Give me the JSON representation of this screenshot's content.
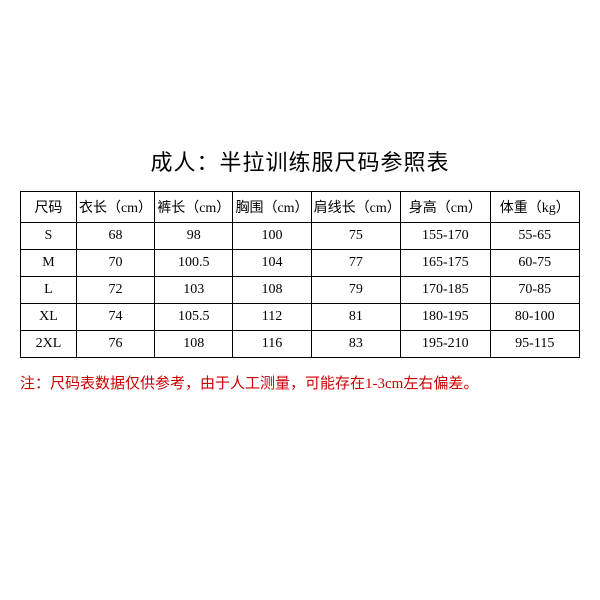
{
  "title": "成人：半拉训练服尺码参照表",
  "note": "注：尺码表数据仅供参考，由于人工测量，可能存在1-3cm左右偏差。",
  "table": {
    "type": "table",
    "border_color": "#000000",
    "background_color": "#ffffff",
    "text_color": "#000000",
    "note_color": "#cc0000",
    "title_fontsize": 22,
    "cell_fontsize": 14,
    "note_fontsize": 15,
    "col_widths_pct": [
      10,
      14,
      14,
      14,
      16,
      16,
      16
    ],
    "columns": [
      "尺码",
      "衣长（cm）",
      "裤长（cm）",
      "胸围（cm）",
      "肩线长（cm）",
      "身高（cm）",
      "体重（kg）"
    ],
    "rows": [
      [
        "S",
        "68",
        "98",
        "100",
        "75",
        "155-170",
        "55-65"
      ],
      [
        "M",
        "70",
        "100.5",
        "104",
        "77",
        "165-175",
        "60-75"
      ],
      [
        "L",
        "72",
        "103",
        "108",
        "79",
        "170-185",
        "70-85"
      ],
      [
        "XL",
        "74",
        "105.5",
        "112",
        "81",
        "180-195",
        "80-100"
      ],
      [
        "2XL",
        "76",
        "108",
        "116",
        "83",
        "195-210",
        "95-115"
      ]
    ]
  }
}
